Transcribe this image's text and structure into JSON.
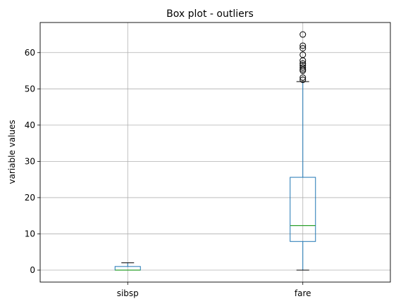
{
  "chart_data": {
    "type": "box",
    "title": "Box plot - outliers",
    "xlabel": "",
    "ylabel": "variable values",
    "categories": [
      "sibsp",
      "fare"
    ],
    "ylim": [
      -3.3,
      68.3
    ],
    "yticks": [
      0,
      10,
      20,
      30,
      40,
      50,
      60
    ],
    "grid": true,
    "boxes": [
      {
        "name": "sibsp",
        "whisker_low": 0,
        "q1": 0,
        "median": 0,
        "q3": 1,
        "whisker_high": 2,
        "outliers": []
      },
      {
        "name": "fare",
        "whisker_low": 0,
        "q1": 7.9,
        "median": 12.3,
        "q3": 25.6,
        "whisker_high": 52,
        "outliers": [
          52.5,
          53.1,
          55.0,
          55.4,
          55.9,
          56.5,
          57.0,
          57.8,
          59.4,
          61.2,
          61.9,
          65.0
        ]
      }
    ],
    "colors": {
      "box": "#1f77b4",
      "median": "#2ca02c",
      "whisker_cap": "#000000",
      "outlier": "#000000"
    }
  }
}
